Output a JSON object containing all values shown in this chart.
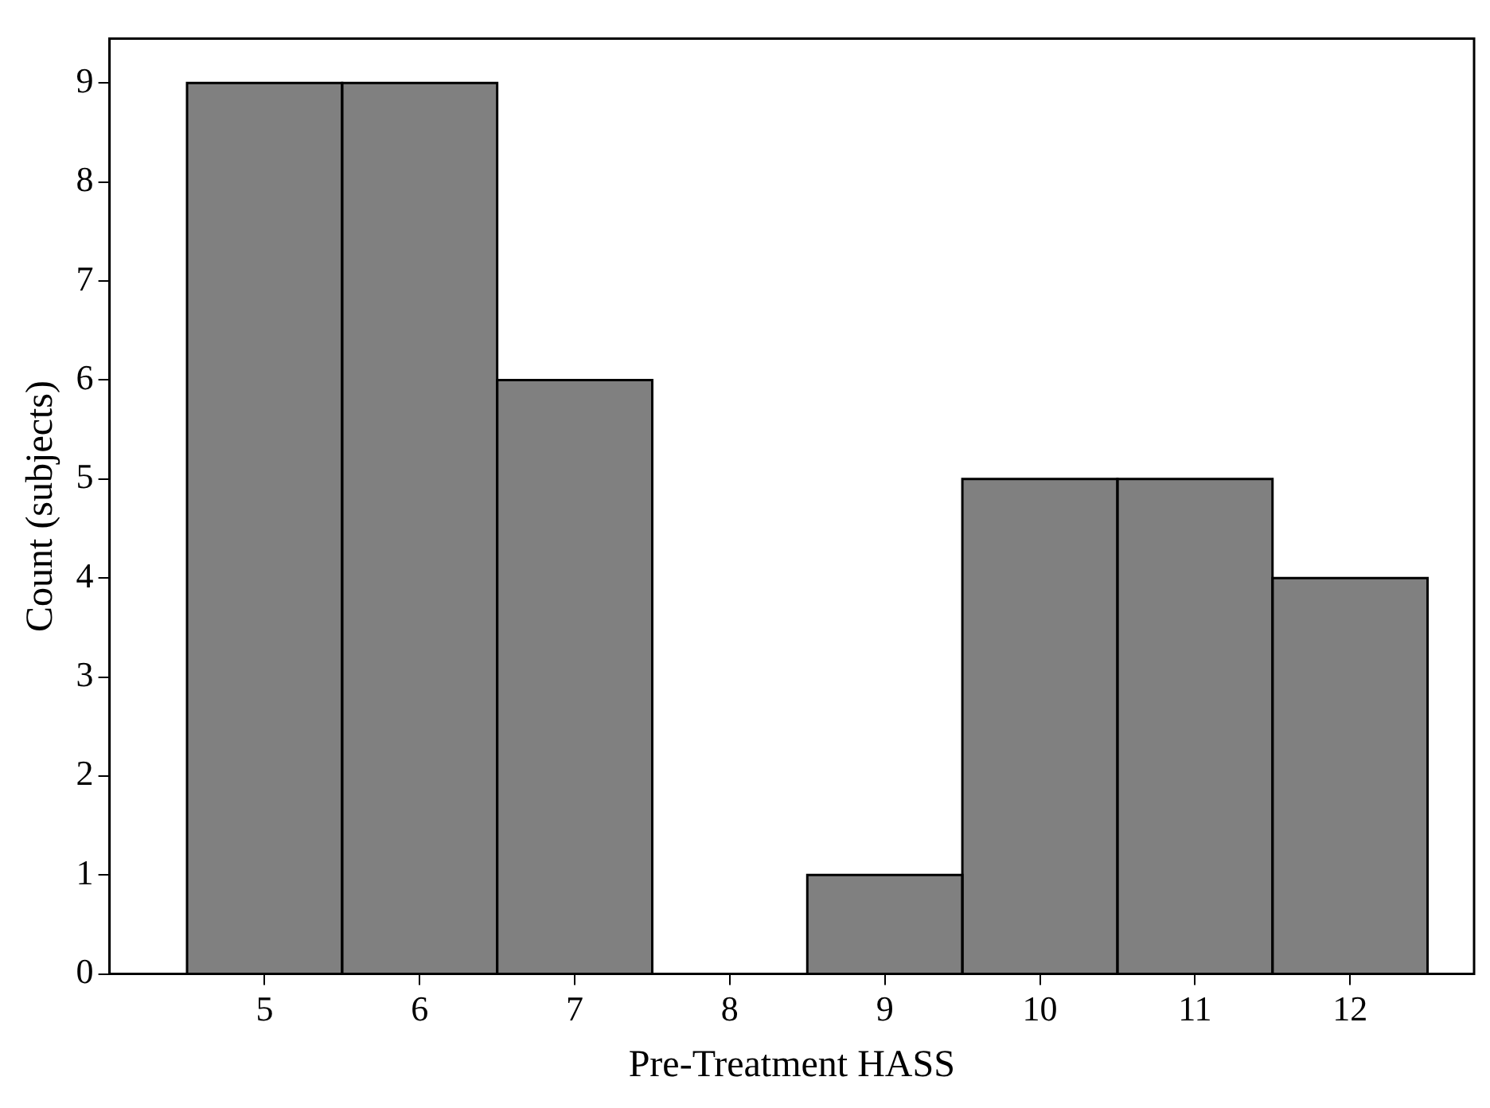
{
  "chart_data": {
    "type": "histogram",
    "xlabel": "Pre-Treatment HASS",
    "ylabel": "Count (subjects)",
    "bins": [
      4.5,
      5.5,
      6.5,
      7.5,
      8.5,
      9.5,
      10.5,
      11.5,
      12.5
    ],
    "values": [
      9,
      9,
      6,
      0,
      1,
      5,
      5,
      4
    ],
    "color": "#808080",
    "xlim": [
      4.0,
      12.8
    ],
    "xticks": [
      5,
      6,
      7,
      8,
      9,
      10,
      11,
      12
    ],
    "ylim": [
      0,
      9.45
    ],
    "yticks": [
      0,
      1,
      2,
      3,
      4,
      5,
      6,
      7,
      8,
      9
    ],
    "grid": false,
    "legend": false
  }
}
